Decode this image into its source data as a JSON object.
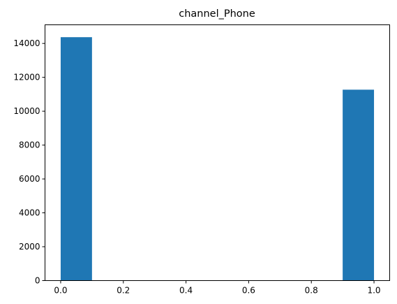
{
  "chart_data": {
    "type": "bar",
    "title": "channel_Phone",
    "xlabel": "",
    "ylabel": "",
    "bin_edges": [
      0.0,
      0.1,
      0.2,
      0.3,
      0.4,
      0.5,
      0.6,
      0.7,
      0.8,
      0.9,
      1.0
    ],
    "values": [
      14370,
      0,
      0,
      0,
      0,
      0,
      0,
      0,
      0,
      11270
    ],
    "xlim": [
      -0.05,
      1.05
    ],
    "ylim": [
      0,
      15100
    ],
    "x_ticks": [
      0.0,
      0.2,
      0.4,
      0.6,
      0.8,
      1.0
    ],
    "x_tick_labels": [
      "0.0",
      "0.2",
      "0.4",
      "0.6",
      "0.8",
      "1.0"
    ],
    "y_ticks": [
      0,
      2000,
      4000,
      6000,
      8000,
      10000,
      12000,
      14000
    ],
    "y_tick_labels": [
      "0",
      "2000",
      "4000",
      "6000",
      "8000",
      "10000",
      "12000",
      "14000"
    ],
    "grid": false,
    "bar_color": "#1f77b4"
  }
}
